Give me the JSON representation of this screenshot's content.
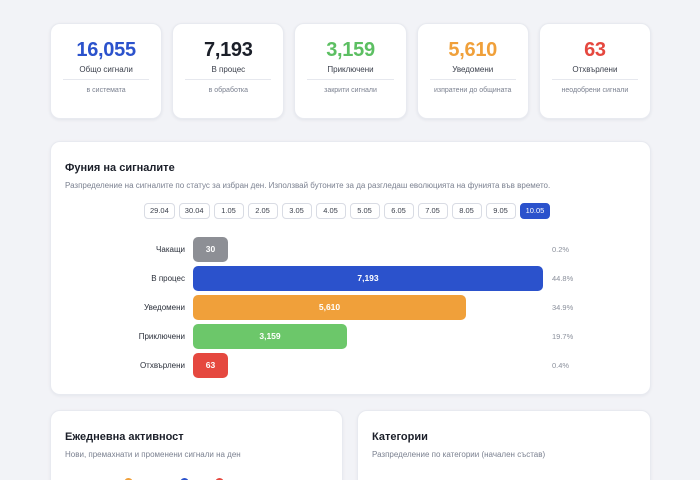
{
  "stats": [
    {
      "value": "16,055",
      "label": "Общо сигнали",
      "sub": "в системата",
      "color": "#2b52cc"
    },
    {
      "value": "7,193",
      "label": "В процес",
      "sub": "в обработка",
      "color": "#1b1f29"
    },
    {
      "value": "3,159",
      "label": "Приключени",
      "sub": "закрити сигнали",
      "color": "#5cbf62"
    },
    {
      "value": "5,610",
      "label": "Уведомени",
      "sub": "изпратени до общината",
      "color": "#f0a03a"
    },
    {
      "value": "63",
      "label": "Отхвърлени",
      "sub": "неодобрени сигнали",
      "color": "#e5483f"
    }
  ],
  "funnel": {
    "title": "Фуния на сигналите",
    "description": "Разпределение на сигналите по статус за избран ден. Използвай бутоните за да разгледаш еволюцията на фунията във времето.",
    "dates": [
      "29.04",
      "30.04",
      "1.05",
      "2.05",
      "3.05",
      "4.05",
      "5.05",
      "6.05",
      "7.05",
      "8.05",
      "9.05",
      "10.05"
    ],
    "active_date": "10.05",
    "rows": [
      {
        "label": "Чакащи",
        "value": "30",
        "pct": "0.2%",
        "share": 0.0042,
        "color": "#8d8f95"
      },
      {
        "label": "В процес",
        "value": "7,193",
        "pct": "44.8%",
        "share": 1.0,
        "color": "#2b52cc"
      },
      {
        "label": "Уведомени",
        "value": "5,610",
        "pct": "34.9%",
        "share": 0.78,
        "color": "#f0a03a"
      },
      {
        "label": "Приключени",
        "value": "3,159",
        "pct": "19.7%",
        "share": 0.44,
        "color": "#6cc76a"
      },
      {
        "label": "Отхвърлени",
        "value": "63",
        "pct": "0.4%",
        "share": 0.0088,
        "color": "#e5483f"
      }
    ]
  },
  "activity": {
    "title": "Ежедневна активност",
    "description": "Нови, премахнати и променени сигнали на ден",
    "legend_colors": [
      "#f0a03a",
      "#2b52cc",
      "#e5483f"
    ]
  },
  "categories": {
    "title": "Категории",
    "description": "Разпределение по категории (начален състав)"
  }
}
